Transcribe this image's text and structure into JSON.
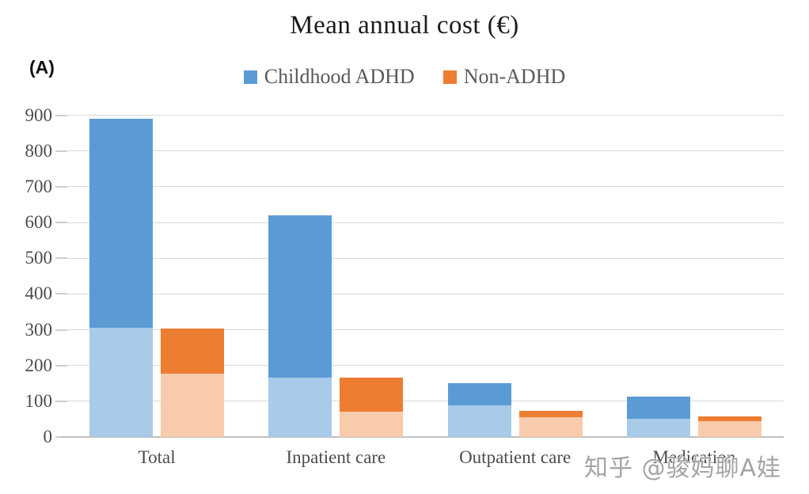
{
  "watermark": {
    "text": "知乎 @骏妈聊A娃"
  },
  "chart_data": {
    "type": "bar",
    "title": "Mean annual cost (€)",
    "panel_label": "(A)",
    "categories": [
      "Total",
      "Inpatient care",
      "Outpatient care",
      "Medication"
    ],
    "series": [
      {
        "name": "Childhood ADHD",
        "color": "#5B9BD5",
        "light_color": "#A8CBE9",
        "totals": [
          890,
          620,
          150,
          113
        ],
        "light_bottom_segment": [
          305,
          165,
          88,
          50
        ]
      },
      {
        "name": "Non-ADHD",
        "color": "#ED7D31",
        "light_color": "#F7CBAB",
        "totals": [
          303,
          165,
          73,
          57
        ],
        "light_bottom_segment": [
          178,
          70,
          55,
          45
        ]
      }
    ],
    "ylim": [
      0,
      900
    ],
    "ytick_step": 100,
    "grid": true,
    "legend_position": "top",
    "bar_segments_note": "each bar is stacked: light shade bottom portion, dark shade top portion"
  }
}
